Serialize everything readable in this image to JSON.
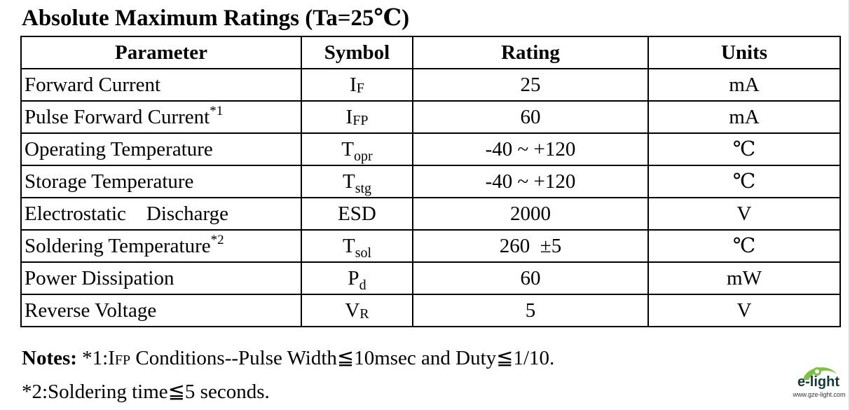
{
  "title": "Absolute Maximum Ratings (Ta=25℃)",
  "table": {
    "headers": [
      "Parameter",
      "Symbol",
      "Rating",
      "Units"
    ],
    "rows": [
      {
        "parameter": "Forward Current",
        "mark": "",
        "symbol": "I",
        "symbol_sub": "F",
        "rating": "25",
        "unit": "mA"
      },
      {
        "parameter": "Pulse Forward Current",
        "mark": "*1",
        "symbol": "I",
        "symbol_sub": "FP",
        "rating": "60",
        "unit": "mA"
      },
      {
        "parameter": "Operating Temperature",
        "mark": "",
        "symbol": "T",
        "symbol_sub": "opr",
        "rating": "-40 ~ +120",
        "unit": "℃"
      },
      {
        "parameter": "Storage Temperature",
        "mark": "",
        "symbol": "T",
        "symbol_sub": "stg",
        "rating": "-40 ~ +120",
        "unit": "℃"
      },
      {
        "parameter": "Electrostatic    Discharge",
        "mark": "",
        "symbol": "ESD",
        "symbol_sub": "",
        "rating": "2000",
        "unit": "V"
      },
      {
        "parameter": "Soldering Temperature",
        "mark": "*2",
        "symbol": "T",
        "symbol_sub": "sol",
        "rating": "260  ±5",
        "unit": "℃"
      },
      {
        "parameter": "Power Dissipation",
        "mark": "",
        "symbol": "P",
        "symbol_sub": "d",
        "rating": "60",
        "unit": "mW"
      },
      {
        "parameter": "Reverse Voltage",
        "mark": "",
        "symbol": "V",
        "symbol_sub": "R",
        "rating": "5",
        "unit": "V"
      }
    ]
  },
  "notes": {
    "label": "Notes:",
    "note1_prefix": " *1:I",
    "note1_sub": "FP",
    "note1_text": " Conditions--Pulse Width≦10msec and Duty≦1/10.",
    "note2": "*2:Soldering time≦5 seconds."
  },
  "logo": {
    "text": "e-light",
    "url": "www.gze-light.com",
    "colors": {
      "green": "#7cc242",
      "dark": "#123a3a"
    }
  }
}
